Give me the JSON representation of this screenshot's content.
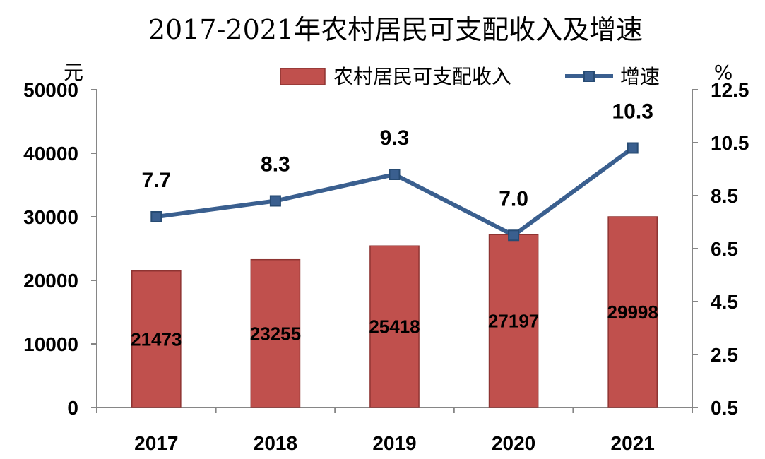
{
  "chart_data": {
    "type": "bar",
    "title": "2017-2021年农村居民可支配收入及增速",
    "categories": [
      "2017",
      "2018",
      "2019",
      "2020",
      "2021"
    ],
    "series": [
      {
        "name": "农村居民可支配收入",
        "type": "bar",
        "axis": "left",
        "values": [
          21473,
          23255,
          25418,
          27197,
          29998
        ],
        "color": "#c0504d",
        "labels": [
          "21473",
          "23255",
          "25418",
          "27197",
          "29998"
        ]
      },
      {
        "name": "增速",
        "type": "line",
        "axis": "right",
        "values": [
          7.7,
          8.3,
          9.3,
          7.0,
          10.3
        ],
        "color": "#3a5f8f",
        "labels": [
          "7.7",
          "8.3",
          "9.3",
          "7.0",
          "10.3"
        ]
      }
    ],
    "ylabel": "元",
    "y2label": "%",
    "ylim": [
      0,
      50000
    ],
    "y2lim": [
      0.5,
      12.5
    ],
    "yticks": [
      "50000",
      "40000",
      "30000",
      "20000",
      "10000",
      "0"
    ],
    "y2ticks": [
      "12.5",
      "10.5",
      "8.5",
      "6.5",
      "4.5",
      "2.5",
      "0.5"
    ],
    "legend_position": "top-right",
    "grid": false
  }
}
